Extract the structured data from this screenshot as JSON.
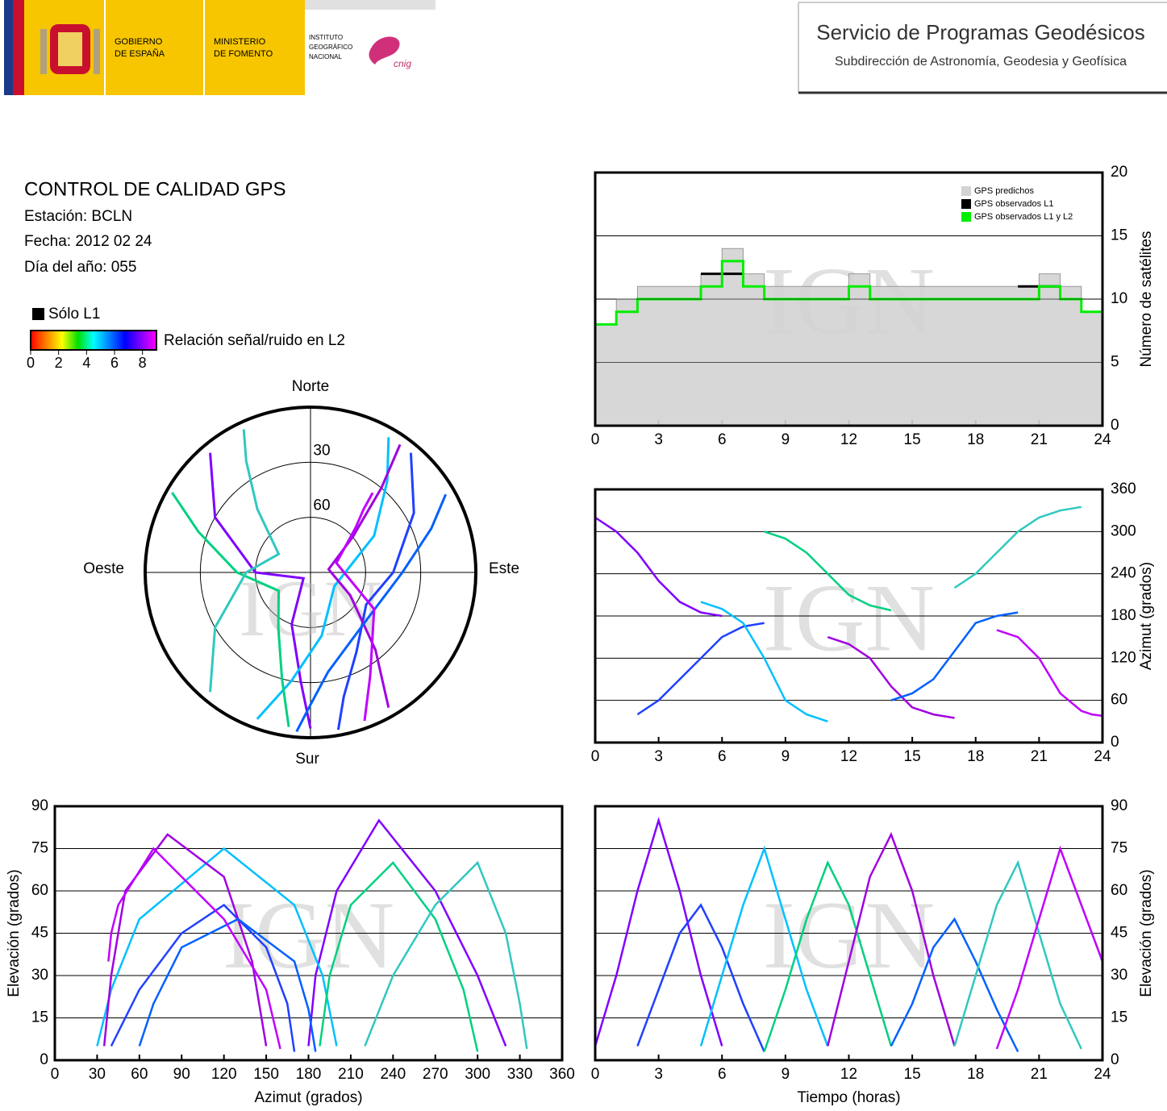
{
  "header": {
    "gov_lines": [
      "GOBIERNO",
      "DE ESPAÑA"
    ],
    "ministry_lines": [
      "MINISTERIO",
      "DE FOMENTO"
    ],
    "ign_lines": [
      "INSTITUTO",
      "GEOGRÁFICO",
      "NACIONAL"
    ],
    "cnig": "cnig",
    "title": "Servicio de Programas Geodésicos",
    "subtitle": "Subdirección de Astronomía, Geodesia y Geofísica"
  },
  "info": {
    "title": "CONTROL DE CALIDAD GPS",
    "station": "Estación: BCLN",
    "date": "Fecha: 2012 02 24",
    "doy": "Día del año: 055"
  },
  "snr_legend": {
    "l1_label": "Sólo L1",
    "label": "Relación señal/ruido en L2",
    "lim": [
      0,
      9
    ],
    "ticks": [
      0,
      2,
      4,
      6,
      8
    ],
    "colors": [
      "#ff0000",
      "#ff8000",
      "#ffff00",
      "#00e000",
      "#00ffff",
      "#0080ff",
      "#0000ff",
      "#8000ff",
      "#ff00ff"
    ]
  },
  "watermark": "IGN",
  "chart_data": [
    {
      "type": "polar",
      "north": "Norte",
      "south": "Sur",
      "east": "Este",
      "west": "Oeste",
      "rlim": [
        0,
        90
      ],
      "rticks": [
        30,
        60
      ],
      "series": [
        {
          "color": "#8000ff",
          "x": [
            320,
            300,
            270,
            230,
            200,
            185,
            180
          ],
          "values": [
            5,
            30,
            60,
            85,
            60,
            30,
            5
          ]
        },
        {
          "color": "#2040ff",
          "x": [
            40,
            60,
            90,
            120,
            150,
            165,
            170
          ],
          "values": [
            5,
            25,
            45,
            55,
            40,
            20,
            3
          ]
        },
        {
          "color": "#00c0ff",
          "x": [
            200,
            190,
            170,
            120,
            60,
            40,
            30
          ],
          "values": [
            5,
            30,
            55,
            75,
            50,
            25,
            5
          ]
        },
        {
          "color": "#00d080",
          "x": [
            300,
            290,
            270,
            240,
            210,
            195,
            188
          ],
          "values": [
            3,
            25,
            50,
            70,
            55,
            30,
            5
          ]
        },
        {
          "color": "#a000e0",
          "x": [
            150,
            140,
            120,
            80,
            50,
            40,
            35
          ],
          "values": [
            5,
            35,
            65,
            80,
            60,
            30,
            5
          ]
        },
        {
          "color": "#0060ff",
          "x": [
            60,
            70,
            90,
            130,
            170,
            180,
            185
          ],
          "values": [
            5,
            20,
            40,
            50,
            35,
            18,
            3
          ]
        },
        {
          "color": "#30c8c0",
          "x": [
            220,
            240,
            270,
            300,
            320,
            330,
            335
          ],
          "values": [
            5,
            30,
            55,
            70,
            45,
            20,
            4
          ]
        },
        {
          "color": "#c000ff",
          "x": [
            160,
            150,
            120,
            70,
            45,
            40,
            38
          ],
          "values": [
            4,
            25,
            50,
            75,
            55,
            45,
            35
          ]
        }
      ]
    },
    {
      "type": "step",
      "ylabel": "Número de satélites",
      "yaxis": "right",
      "xlim": [
        0,
        24
      ],
      "xticks": [
        0,
        3,
        6,
        9,
        12,
        15,
        18,
        21,
        24
      ],
      "ylim": [
        0,
        20
      ],
      "yticks": [
        0,
        5,
        10,
        15,
        20
      ],
      "grid": true,
      "legend": "upper right",
      "x": [
        0,
        1,
        2,
        3,
        4,
        5,
        6,
        7,
        8,
        9,
        10,
        11,
        12,
        13,
        14,
        15,
        16,
        17,
        18,
        19,
        20,
        21,
        22,
        23,
        24
      ],
      "series": [
        {
          "name": "GPS predichos",
          "color": "#d3d3d3",
          "fill": true,
          "values": [
            8,
            10,
            11,
            11,
            11,
            12,
            14,
            12,
            11,
            11,
            11,
            11,
            12,
            11,
            11,
            11,
            11,
            11,
            11,
            11,
            11,
            12,
            11,
            9,
            9
          ]
        },
        {
          "name": "GPS observados L1",
          "color": "#000000",
          "values": [
            null,
            null,
            null,
            null,
            null,
            12,
            12,
            null,
            null,
            null,
            null,
            null,
            null,
            null,
            null,
            null,
            null,
            null,
            null,
            null,
            11,
            11,
            null,
            null,
            null
          ]
        },
        {
          "name": "GPS observados L1 y L2",
          "color": "#00ee00",
          "values": [
            8,
            9,
            10,
            10,
            10,
            11,
            13,
            11,
            10,
            10,
            10,
            10,
            11,
            10,
            10,
            10,
            10,
            10,
            10,
            10,
            10,
            11,
            10,
            9,
            8
          ]
        }
      ]
    },
    {
      "type": "line",
      "ylabel": "Azimut (grados)",
      "yaxis": "right",
      "xlim": [
        0,
        24
      ],
      "xticks": [
        0,
        3,
        6,
        9,
        12,
        15,
        18,
        21,
        24
      ],
      "ylim": [
        0,
        360
      ],
      "yticks": [
        0,
        60,
        120,
        180,
        240,
        300,
        360
      ],
      "grid": true,
      "series": [
        {
          "color": "#8000ff",
          "x": [
            0,
            1,
            2,
            3,
            4,
            5,
            6
          ],
          "values": [
            320,
            300,
            270,
            230,
            200,
            185,
            180
          ]
        },
        {
          "color": "#2040ff",
          "x": [
            2,
            3,
            4,
            5,
            6,
            7,
            8
          ],
          "values": [
            40,
            60,
            90,
            120,
            150,
            165,
            170
          ]
        },
        {
          "color": "#00c0ff",
          "x": [
            5,
            6,
            7,
            8,
            9,
            10,
            11
          ],
          "values": [
            200,
            190,
            170,
            120,
            60,
            40,
            30
          ]
        },
        {
          "color": "#00d080",
          "x": [
            8,
            9,
            10,
            11,
            12,
            13,
            14
          ],
          "values": [
            300,
            290,
            270,
            240,
            210,
            195,
            188
          ]
        },
        {
          "color": "#a000e0",
          "x": [
            11,
            12,
            13,
            14,
            15,
            16,
            17
          ],
          "values": [
            150,
            140,
            120,
            80,
            50,
            40,
            35
          ]
        },
        {
          "color": "#0060ff",
          "x": [
            14,
            15,
            16,
            17,
            18,
            19,
            20
          ],
          "values": [
            60,
            70,
            90,
            130,
            170,
            180,
            185
          ]
        },
        {
          "color": "#30c8c0",
          "x": [
            17,
            18,
            19,
            20,
            21,
            22,
            23
          ],
          "values": [
            220,
            240,
            270,
            300,
            320,
            330,
            335
          ]
        },
        {
          "color": "#c000ff",
          "x": [
            19,
            20,
            21,
            22,
            23,
            23.5,
            24
          ],
          "values": [
            160,
            150,
            120,
            70,
            45,
            40,
            38
          ]
        }
      ]
    },
    {
      "type": "line",
      "xlabel": "Azimut (grados)",
      "ylabel": "Elevación (grados)",
      "yaxis": "left",
      "xlim": [
        0,
        360
      ],
      "xticks": [
        0,
        30,
        60,
        90,
        120,
        150,
        180,
        210,
        240,
        270,
        300,
        330,
        360
      ],
      "ylim": [
        0,
        90
      ],
      "yticks": [
        0,
        15,
        30,
        45,
        60,
        75,
        90
      ],
      "grid": true,
      "series": [
        {
          "color": "#8000ff",
          "x": [
            320,
            300,
            270,
            230,
            200,
            185,
            180
          ],
          "values": [
            5,
            30,
            60,
            85,
            60,
            30,
            5
          ]
        },
        {
          "color": "#2040ff",
          "x": [
            40,
            60,
            90,
            120,
            150,
            165,
            170
          ],
          "values": [
            5,
            25,
            45,
            55,
            40,
            20,
            3
          ]
        },
        {
          "color": "#00c0ff",
          "x": [
            200,
            190,
            170,
            120,
            60,
            40,
            30
          ],
          "values": [
            5,
            30,
            55,
            75,
            50,
            25,
            5
          ]
        },
        {
          "color": "#00d080",
          "x": [
            300,
            290,
            270,
            240,
            210,
            195,
            188
          ],
          "values": [
            3,
            25,
            50,
            70,
            55,
            30,
            5
          ]
        },
        {
          "color": "#a000e0",
          "x": [
            150,
            140,
            120,
            80,
            50,
            40,
            35
          ],
          "values": [
            5,
            35,
            65,
            80,
            60,
            30,
            5
          ]
        },
        {
          "color": "#0060ff",
          "x": [
            60,
            70,
            90,
            130,
            170,
            180,
            185
          ],
          "values": [
            5,
            20,
            40,
            50,
            35,
            18,
            3
          ]
        },
        {
          "color": "#30c8c0",
          "x": [
            220,
            240,
            270,
            300,
            320,
            330,
            335
          ],
          "values": [
            5,
            30,
            55,
            70,
            45,
            20,
            4
          ]
        },
        {
          "color": "#c000ff",
          "x": [
            160,
            150,
            120,
            70,
            45,
            40,
            38
          ],
          "values": [
            4,
            25,
            50,
            75,
            55,
            45,
            35
          ]
        }
      ]
    },
    {
      "type": "line",
      "xlabel": "Tiempo (horas)",
      "ylabel": "Elevación (grados)",
      "yaxis": "right",
      "xlim": [
        0,
        24
      ],
      "xticks": [
        0,
        3,
        6,
        9,
        12,
        15,
        18,
        21,
        24
      ],
      "ylim": [
        0,
        90
      ],
      "yticks": [
        0,
        15,
        30,
        45,
        60,
        75,
        90
      ],
      "grid": true,
      "series": [
        {
          "color": "#8000ff",
          "x": [
            0,
            1,
            2,
            3,
            4,
            5,
            6
          ],
          "values": [
            5,
            30,
            60,
            85,
            60,
            30,
            5
          ]
        },
        {
          "color": "#2040ff",
          "x": [
            2,
            3,
            4,
            5,
            6,
            7,
            8
          ],
          "values": [
            5,
            25,
            45,
            55,
            40,
            20,
            3
          ]
        },
        {
          "color": "#00c0ff",
          "x": [
            5,
            6,
            7,
            8,
            9,
            10,
            11
          ],
          "values": [
            5,
            30,
            55,
            75,
            50,
            25,
            5
          ]
        },
        {
          "color": "#00d080",
          "x": [
            8,
            9,
            10,
            11,
            12,
            13,
            14
          ],
          "values": [
            3,
            25,
            50,
            70,
            55,
            30,
            5
          ]
        },
        {
          "color": "#a000e0",
          "x": [
            11,
            12,
            13,
            14,
            15,
            16,
            17
          ],
          "values": [
            5,
            35,
            65,
            80,
            60,
            30,
            5
          ]
        },
        {
          "color": "#0060ff",
          "x": [
            14,
            15,
            16,
            17,
            18,
            19,
            20
          ],
          "values": [
            5,
            20,
            40,
            50,
            35,
            18,
            3
          ]
        },
        {
          "color": "#30c8c0",
          "x": [
            17,
            18,
            19,
            20,
            21,
            22,
            23
          ],
          "values": [
            5,
            30,
            55,
            70,
            45,
            20,
            4
          ]
        },
        {
          "color": "#c000ff",
          "x": [
            19,
            20,
            21,
            22,
            23,
            23.5,
            24
          ],
          "values": [
            4,
            25,
            50,
            75,
            55,
            45,
            35
          ]
        }
      ]
    }
  ]
}
